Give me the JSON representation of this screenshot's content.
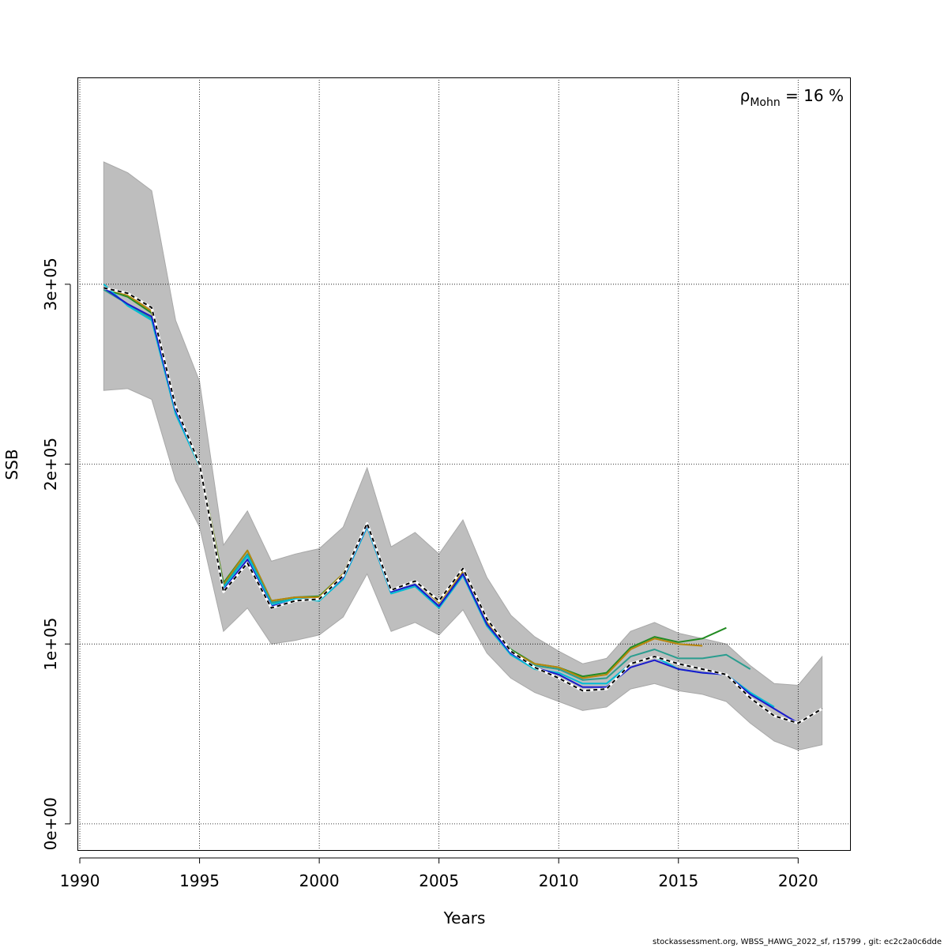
{
  "chart_data": {
    "type": "line",
    "xlabel": "Years",
    "ylabel": "SSB",
    "xlim": [
      1989.9,
      1990.0,
      2022.2
    ],
    "xticks": [
      1990,
      1995,
      2000,
      2005,
      2010,
      2015,
      2020
    ],
    "ylim": [
      -15000,
      415000
    ],
    "yticks": [
      0,
      100000,
      200000,
      300000
    ],
    "ytick_labels": [
      "0e+00",
      "1e+05",
      "2e+05",
      "3e+05"
    ],
    "grid": true,
    "annotation": {
      "rho": "ρ",
      "subscript": "Mohn",
      "text": " = 16 %"
    },
    "confidence_band": {
      "color": "#bebebe",
      "x": [
        1991,
        1992,
        1993,
        1994,
        1995,
        1996,
        1997,
        1998,
        1999,
        2000,
        2001,
        2002,
        2003,
        2004,
        2005,
        2006,
        2007,
        2008,
        2009,
        2010,
        2011,
        2012,
        2013,
        2014,
        2015,
        2016,
        2017,
        2018,
        2019,
        2020,
        2021
      ],
      "upper": [
        368000,
        362000,
        352000,
        280000,
        246000,
        155000,
        174000,
        146000,
        150000,
        153000,
        165000,
        198000,
        154000,
        162000,
        150000,
        169000,
        137000,
        116000,
        104000,
        96000,
        89000,
        92000,
        107000,
        112000,
        106000,
        103000,
        100000,
        88000,
        78000,
        77000,
        93000
      ],
      "lower": [
        241000,
        242000,
        236000,
        191000,
        165000,
        107000,
        120000,
        100000,
        102000,
        105000,
        115000,
        139000,
        107000,
        112000,
        105000,
        119000,
        95000,
        81000,
        73000,
        68000,
        63000,
        65000,
        75000,
        78000,
        74000,
        72000,
        68000,
        56000,
        46000,
        41000,
        44000
      ]
    },
    "series": [
      {
        "color": "#228b22",
        "x": [
          1991,
          1992,
          1993,
          1994,
          1995,
          1996,
          1997,
          1998,
          1999,
          2000,
          2001,
          2002,
          2003,
          2004,
          2005,
          2006,
          2007,
          2008,
          2009,
          2010,
          2011,
          2012,
          2013,
          2014,
          2015,
          2016,
          2017
        ],
        "values": [
          297500,
          293000,
          284000,
          229000,
          200000,
          134000,
          152000,
          124000,
          126000,
          126500,
          139000,
          167000,
          130000,
          135000,
          123000,
          141000,
          112000,
          97000,
          89000,
          87000,
          82000,
          84000,
          98000,
          104000,
          101000,
          103000,
          109000
        ]
      },
      {
        "color": "#b8860b",
        "x": [
          1991,
          1992,
          1993,
          1994,
          1995,
          1996,
          1997,
          1998,
          1999,
          2000,
          2001,
          2002,
          2003,
          2004,
          2005,
          2006,
          2007,
          2008,
          2009,
          2010,
          2011,
          2012,
          2013,
          2014,
          2015,
          2016
        ],
        "values": [
          298000,
          294000,
          285000,
          229000,
          200000,
          133000,
          152000,
          124000,
          126000,
          126000,
          139000,
          167000,
          130000,
          135000,
          123000,
          140000,
          112000,
          96000,
          89000,
          87000,
          81000,
          83000,
          97000,
          103000,
          100000,
          99000
        ]
      },
      {
        "color": "#2a9d8f",
        "x": [
          1991,
          1992,
          1993,
          1994,
          1995,
          1996,
          1997,
          1998,
          1999,
          2000,
          2001,
          2002,
          2003,
          2004,
          2005,
          2006,
          2007,
          2008,
          2009,
          2010,
          2011,
          2012,
          2013,
          2014,
          2015,
          2016,
          2017,
          2018
        ],
        "values": [
          297000,
          289000,
          281000,
          228000,
          199000,
          132000,
          150000,
          123000,
          125000,
          125000,
          137000,
          166000,
          129000,
          133000,
          121000,
          139000,
          111000,
          95000,
          88000,
          86000,
          80000,
          81000,
          93000,
          97000,
          92000,
          92000,
          94000,
          86000
        ]
      },
      {
        "color": "#00bcd4",
        "x": [
          1991,
          1992,
          1993,
          1994,
          1995,
          1996,
          1997,
          1998,
          1999,
          2000,
          2001,
          2002,
          2003,
          2004,
          2005,
          2006,
          2007,
          2008,
          2009,
          2010,
          2011,
          2012,
          2013,
          2014,
          2015,
          2016,
          2017,
          2018,
          2019
        ],
        "values": [
          300000,
          288000,
          280000,
          228000,
          199000,
          131000,
          149000,
          122000,
          125000,
          124000,
          136000,
          165000,
          128000,
          132000,
          120000,
          138000,
          110000,
          94000,
          86000,
          84000,
          78000,
          78000,
          89000,
          93000,
          86000,
          84000,
          83000,
          73000,
          65000
        ]
      },
      {
        "color": "#1a1acd",
        "x": [
          1991,
          1992,
          1993,
          1994,
          1995,
          1996,
          1997,
          1998,
          1999,
          2000,
          2001,
          2002,
          2003,
          2004,
          2005,
          2006,
          2007,
          2008,
          2009,
          2010,
          2011,
          2012,
          2013,
          2014,
          2015,
          2016,
          2017,
          2018,
          2019,
          2020
        ],
        "values": [
          298000,
          289000,
          282000,
          230000,
          200000,
          130000,
          147000,
          121000,
          124000,
          125000,
          137000,
          166000,
          129000,
          133000,
          121000,
          139000,
          111000,
          95000,
          87000,
          83000,
          76000,
          76000,
          87000,
          91000,
          86000,
          84000,
          83000,
          72000,
          64000,
          56000
        ]
      },
      {
        "color": "#000000",
        "dash": "5,4",
        "halo": "#ffffff",
        "x": [
          1991,
          1992,
          1993,
          1994,
          1995,
          1996,
          1997,
          1998,
          1999,
          2000,
          2001,
          2002,
          2003,
          2004,
          2005,
          2006,
          2007,
          2008,
          2009,
          2010,
          2011,
          2012,
          2013,
          2014,
          2015,
          2016,
          2017,
          2018,
          2019,
          2020,
          2021
        ],
        "values": [
          298000,
          295000,
          287000,
          232000,
          200000,
          129000,
          145000,
          120000,
          124000,
          125000,
          138000,
          167000,
          130000,
          135000,
          124000,
          142000,
          114000,
          96000,
          87000,
          81000,
          74000,
          75000,
          89000,
          93000,
          89000,
          86000,
          83000,
          70000,
          60000,
          56000,
          64000
        ]
      }
    ]
  },
  "footer": "stockassessment.org, WBSS_HAWG_2022_sf, r15799 , git: ec2c2a0c6dde"
}
